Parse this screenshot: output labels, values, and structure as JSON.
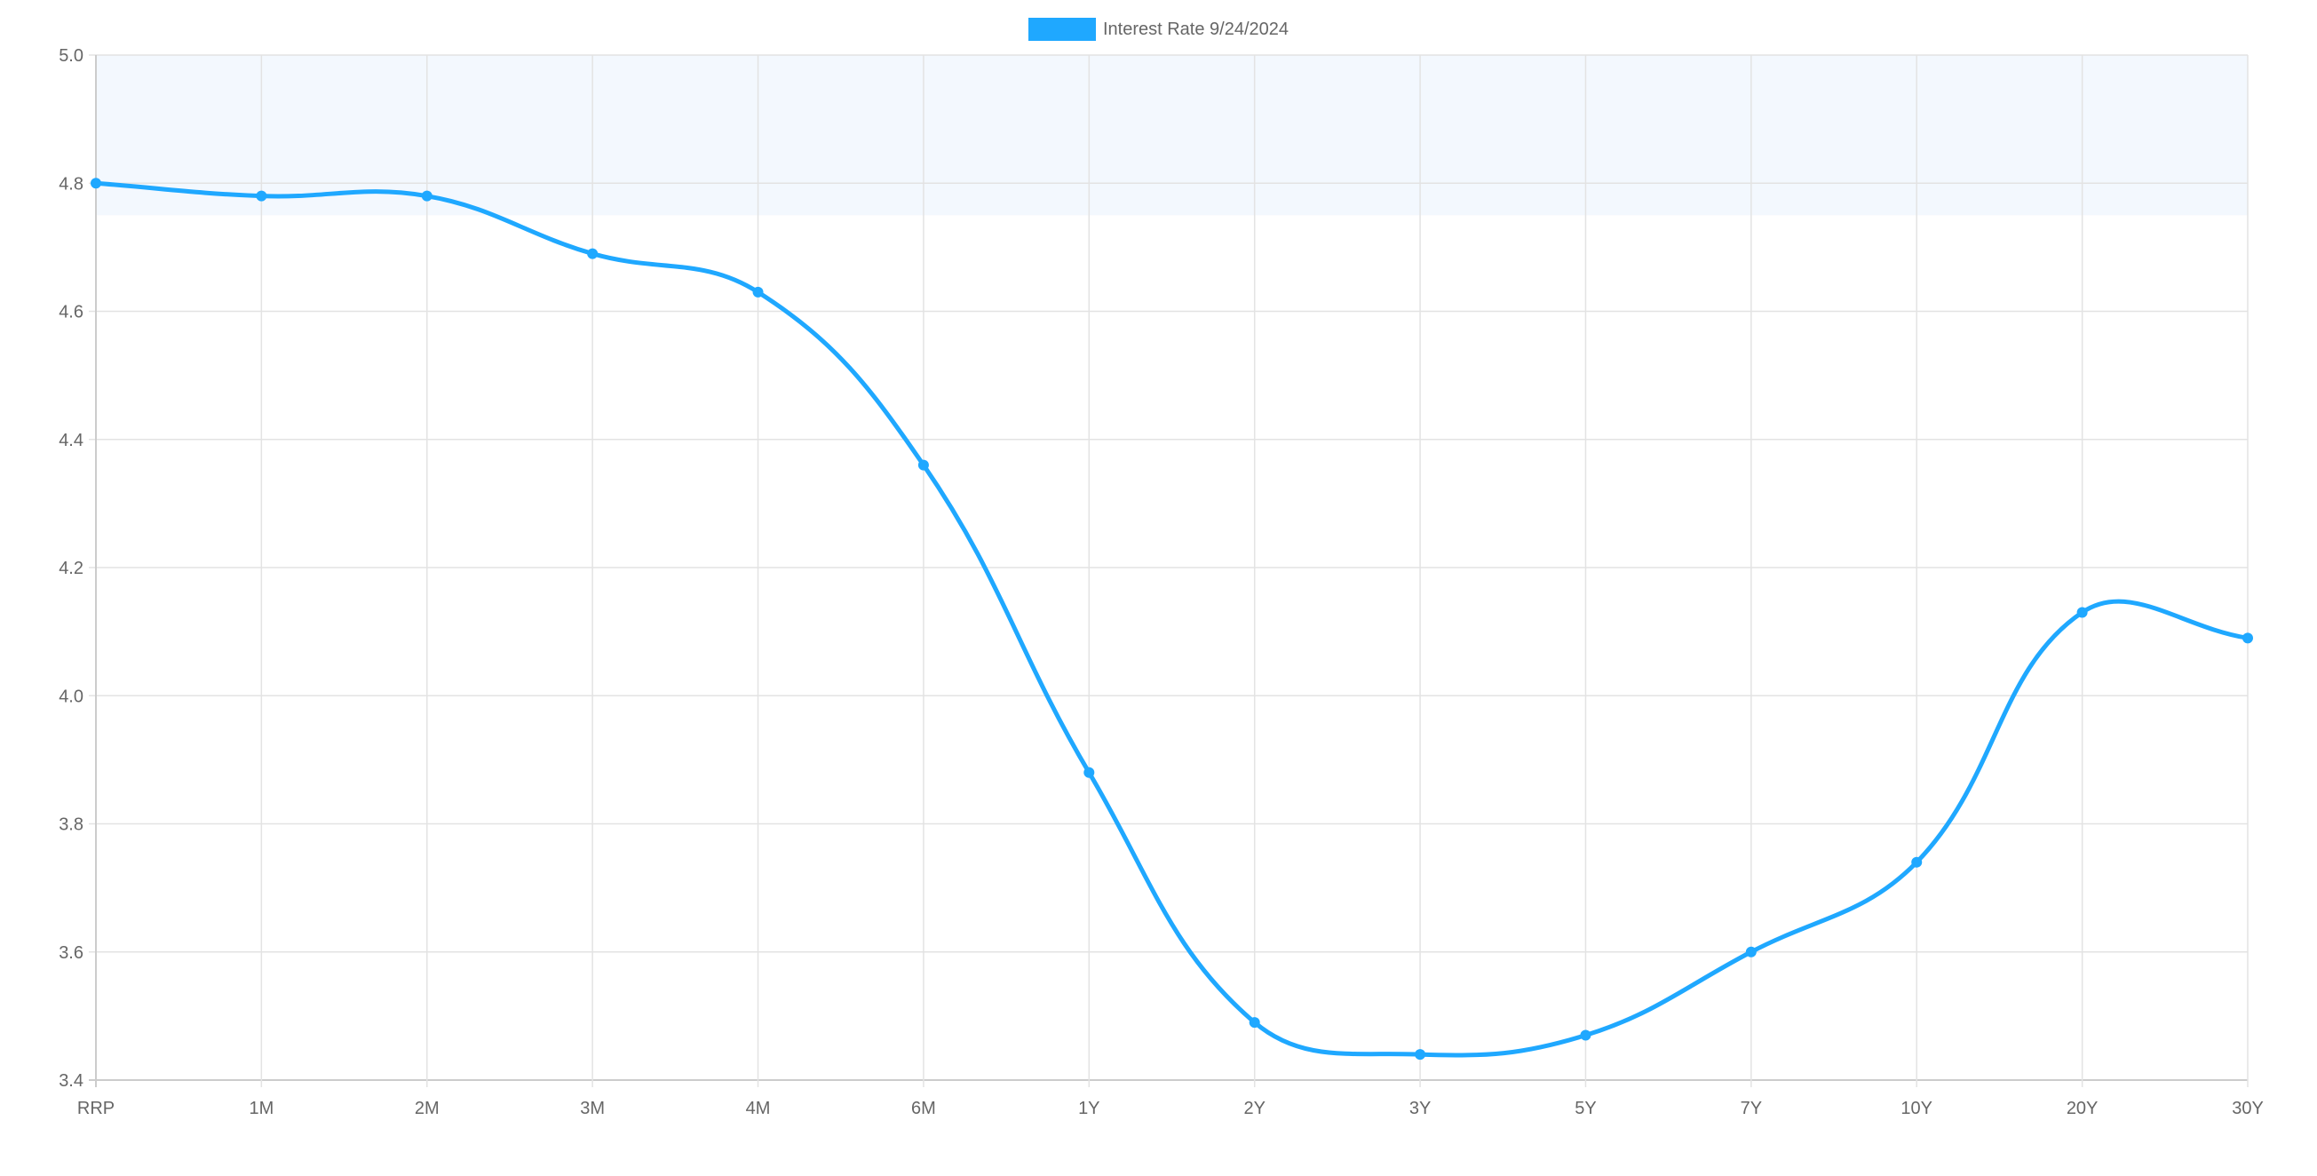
{
  "chart_data": {
    "type": "line",
    "title": "",
    "xlabel": "",
    "ylabel": "",
    "categories": [
      "RRP",
      "1M",
      "2M",
      "3M",
      "4M",
      "6M",
      "1Y",
      "2Y",
      "3Y",
      "5Y",
      "7Y",
      "10Y",
      "20Y",
      "30Y"
    ],
    "series": [
      {
        "name": "Interest Rate 9/24/2024",
        "values": [
          4.8,
          4.78,
          4.78,
          4.69,
          4.63,
          4.36,
          3.88,
          3.49,
          3.44,
          3.47,
          3.6,
          3.74,
          4.13,
          4.09
        ],
        "color": "#1fa8ff"
      }
    ],
    "ylim": [
      3.4,
      5.0
    ],
    "yticks": [
      "3.4",
      "3.6",
      "3.8",
      "4.0",
      "4.2",
      "4.4",
      "4.6",
      "4.8",
      "5.0"
    ],
    "shaded_band": {
      "from": 4.75,
      "to": 5.0,
      "color": "#f3f8fe"
    },
    "grid": true,
    "smooth": true,
    "legend_position": "top"
  }
}
